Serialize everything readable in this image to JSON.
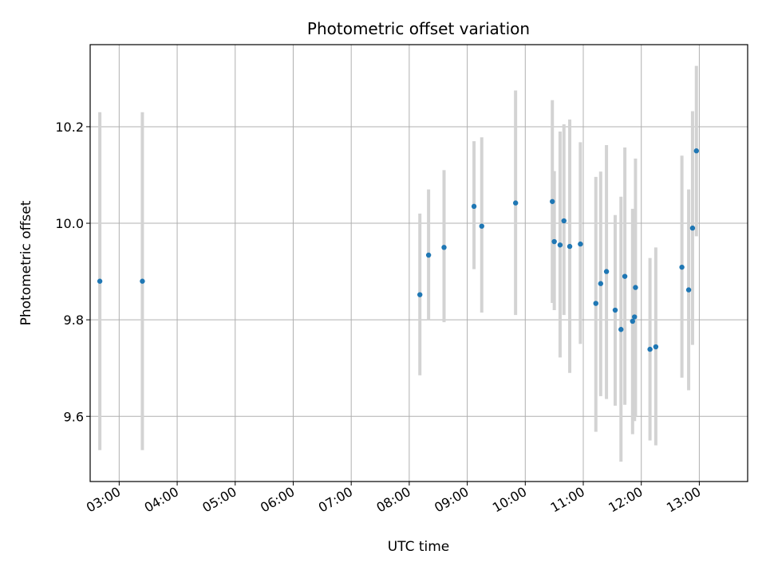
{
  "chart_data": {
    "type": "scatter",
    "title": "Photometric offset variation",
    "xlabel": "UTC time",
    "ylabel": "Photometric offset",
    "x_unit": "time of day (UTC)",
    "xlim": [
      "02:30",
      "13:50"
    ],
    "ylim": [
      9.465,
      10.37
    ],
    "x_ticks": [
      "03:00",
      "04:00",
      "05:00",
      "06:00",
      "07:00",
      "08:00",
      "09:00",
      "10:00",
      "11:00",
      "12:00",
      "13:00"
    ],
    "y_ticks": [
      "9.6",
      "9.8",
      "10.0",
      "10.2"
    ],
    "grid": true,
    "colors": {
      "point": "#1f77b4",
      "errorbar": "#d3d3d3",
      "grid": "#b0b0b0"
    },
    "points": [
      {
        "x": "02:40",
        "y": 9.88,
        "ylow": 9.53,
        "yhigh": 10.23
      },
      {
        "x": "03:24",
        "y": 9.88,
        "ylow": 9.53,
        "yhigh": 10.23
      },
      {
        "x": "08:11",
        "y": 9.852,
        "ylow": 9.685,
        "yhigh": 10.02
      },
      {
        "x": "08:20",
        "y": 9.934,
        "ylow": 9.8,
        "yhigh": 10.07
      },
      {
        "x": "08:36",
        "y": 9.95,
        "ylow": 9.795,
        "yhigh": 10.11
      },
      {
        "x": "09:07",
        "y": 10.035,
        "ylow": 9.905,
        "yhigh": 10.17
      },
      {
        "x": "09:15",
        "y": 9.994,
        "ylow": 9.815,
        "yhigh": 10.178
      },
      {
        "x": "09:50",
        "y": 10.042,
        "ylow": 9.81,
        "yhigh": 10.275
      },
      {
        "x": "10:28",
        "y": 10.045,
        "ylow": 9.835,
        "yhigh": 10.255
      },
      {
        "x": "10:30",
        "y": 9.962,
        "ylow": 9.82,
        "yhigh": 10.108
      },
      {
        "x": "10:36",
        "y": 9.955,
        "ylow": 9.722,
        "yhigh": 10.19
      },
      {
        "x": "10:40",
        "y": 10.005,
        "ylow": 9.81,
        "yhigh": 10.205
      },
      {
        "x": "10:46",
        "y": 9.952,
        "ylow": 9.69,
        "yhigh": 10.215
      },
      {
        "x": "10:57",
        "y": 9.957,
        "ylow": 9.75,
        "yhigh": 10.168
      },
      {
        "x": "11:13",
        "y": 9.834,
        "ylow": 9.568,
        "yhigh": 10.096
      },
      {
        "x": "11:18",
        "y": 9.875,
        "ylow": 9.642,
        "yhigh": 10.107
      },
      {
        "x": "11:24",
        "y": 9.9,
        "ylow": 9.636,
        "yhigh": 10.162
      },
      {
        "x": "11:33",
        "y": 9.82,
        "ylow": 9.622,
        "yhigh": 10.017
      },
      {
        "x": "11:39",
        "y": 9.78,
        "ylow": 9.506,
        "yhigh": 10.055
      },
      {
        "x": "11:43",
        "y": 9.89,
        "ylow": 9.624,
        "yhigh": 10.157
      },
      {
        "x": "11:51",
        "y": 9.797,
        "ylow": 9.563,
        "yhigh": 10.03
      },
      {
        "x": "11:53",
        "y": 9.806,
        "ylow": 9.59,
        "yhigh": 10.0
      },
      {
        "x": "11:54",
        "y": 9.867,
        "ylow": 9.6,
        "yhigh": 10.134
      },
      {
        "x": "12:09",
        "y": 9.739,
        "ylow": 9.55,
        "yhigh": 9.928
      },
      {
        "x": "12:15",
        "y": 9.744,
        "ylow": 9.54,
        "yhigh": 9.95
      },
      {
        "x": "12:42",
        "y": 9.909,
        "ylow": 9.68,
        "yhigh": 10.14
      },
      {
        "x": "12:49",
        "y": 9.862,
        "ylow": 9.654,
        "yhigh": 10.07
      },
      {
        "x": "12:53",
        "y": 9.99,
        "ylow": 9.748,
        "yhigh": 10.232
      },
      {
        "x": "12:57",
        "y": 10.15,
        "ylow": 9.973,
        "yhigh": 10.326
      }
    ]
  }
}
